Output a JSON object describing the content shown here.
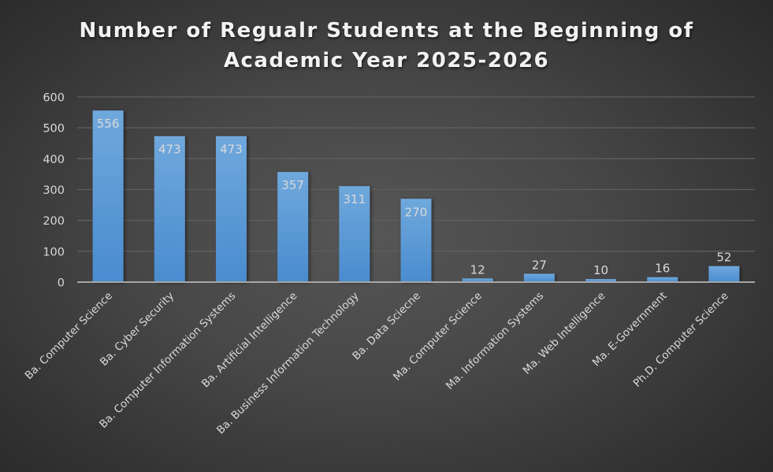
{
  "chart_data": {
    "type": "bar",
    "title": "Number of Regualr Students at the Beginning of Academic Year 2025-2026",
    "title_lines": [
      "Number of Regualr Students at the Beginning of",
      "Academic Year 2025-2026"
    ],
    "categories": [
      "Ba. Computer Science",
      "Ba. Cyber Security",
      "Ba. Computer Information Systems",
      "Ba. Artificial Intelligence",
      "Ba. Business Information Technology",
      "Ba. Data Sciecne",
      "Ma. Computer Science",
      "Ma. Information Systems",
      "Ma. Web Intelligence",
      "Ma. E-Government",
      "Ph.D. Computer Science"
    ],
    "values": [
      556,
      473,
      473,
      357,
      311,
      270,
      12,
      27,
      10,
      16,
      52
    ],
    "xlabel": "",
    "ylabel": "",
    "ylim": [
      0,
      600
    ],
    "yticks": [
      0,
      100,
      200,
      300,
      400,
      500,
      600
    ],
    "grid": true,
    "legend": "none",
    "data_labels": true,
    "colors": {
      "bar_top": "#6fa8dc",
      "bar_bottom": "#4a8ccf",
      "gridline": "#5e5e5e",
      "axis": "#a6a6a6",
      "text": "#d9d9d9",
      "title": "#f2f2f2"
    }
  }
}
